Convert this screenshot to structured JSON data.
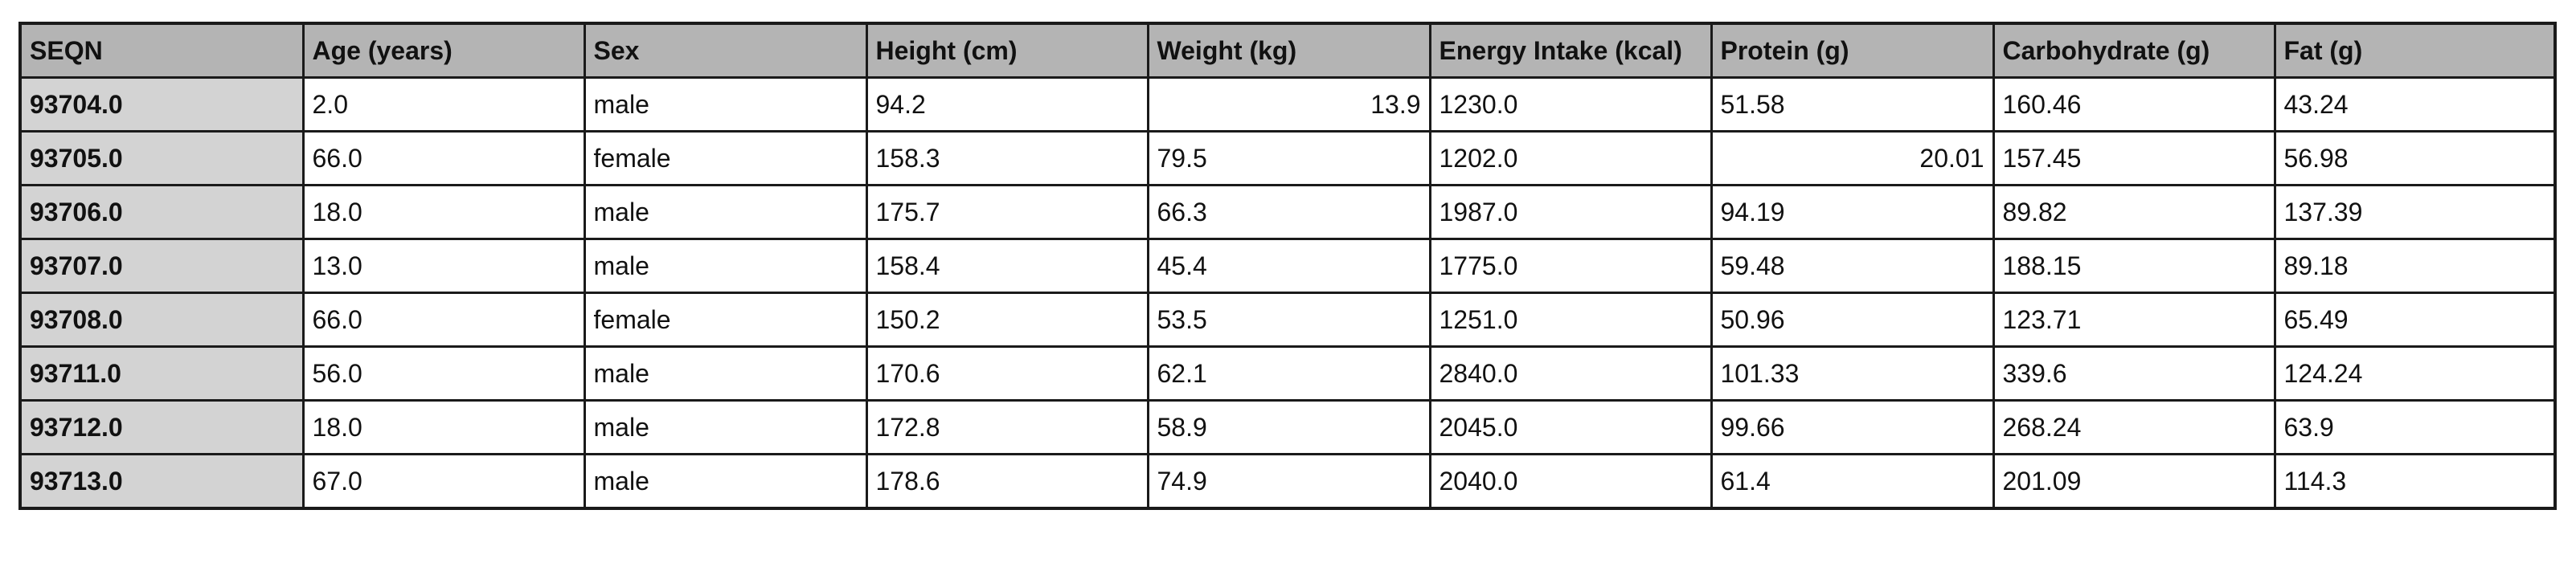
{
  "table": {
    "columns": [
      "SEQN",
      "Age (years)",
      "Sex",
      "Height (cm)",
      "Weight (kg)",
      "Energy Intake (kcal)",
      "Protein (g)",
      "Carbohydrate (g)",
      "Fat (g)"
    ],
    "rows": [
      {
        "seqn": "93704.0",
        "cells": [
          "2.0",
          "male",
          "94.2",
          "13.9",
          "1230.0",
          "51.58",
          "160.46",
          "43.24"
        ]
      },
      {
        "seqn": "93705.0",
        "cells": [
          "66.0",
          "female",
          "158.3",
          "79.5",
          "1202.0",
          "20.01",
          "157.45",
          "56.98"
        ]
      },
      {
        "seqn": "93706.0",
        "cells": [
          "18.0",
          "male",
          "175.7",
          "66.3",
          "1987.0",
          "94.19",
          "89.82",
          "137.39"
        ]
      },
      {
        "seqn": "93707.0",
        "cells": [
          "13.0",
          "male",
          "158.4",
          "45.4",
          "1775.0",
          "59.48",
          "188.15",
          "89.18"
        ]
      },
      {
        "seqn": "93708.0",
        "cells": [
          "66.0",
          "female",
          "150.2",
          "53.5",
          "1251.0",
          "50.96",
          "123.71",
          "65.49"
        ]
      },
      {
        "seqn": "93711.0",
        "cells": [
          "56.0",
          "male",
          "170.6",
          "62.1",
          "2840.0",
          "101.33",
          "339.6",
          "124.24"
        ]
      },
      {
        "seqn": "93712.0",
        "cells": [
          "18.0",
          "male",
          "172.8",
          "58.9",
          "2045.0",
          "99.66",
          "268.24",
          "63.9"
        ]
      },
      {
        "seqn": "93713.0",
        "cells": [
          "67.0",
          "male",
          "178.6",
          "74.9",
          "2040.0",
          "61.4",
          "201.09",
          "114.3"
        ]
      }
    ]
  },
  "colors": {
    "header_background": "#b4b4b4",
    "row_header_background": "#d3d3d3",
    "cell_background": "#ffffff",
    "grid_lines": "#1a1a1a"
  }
}
